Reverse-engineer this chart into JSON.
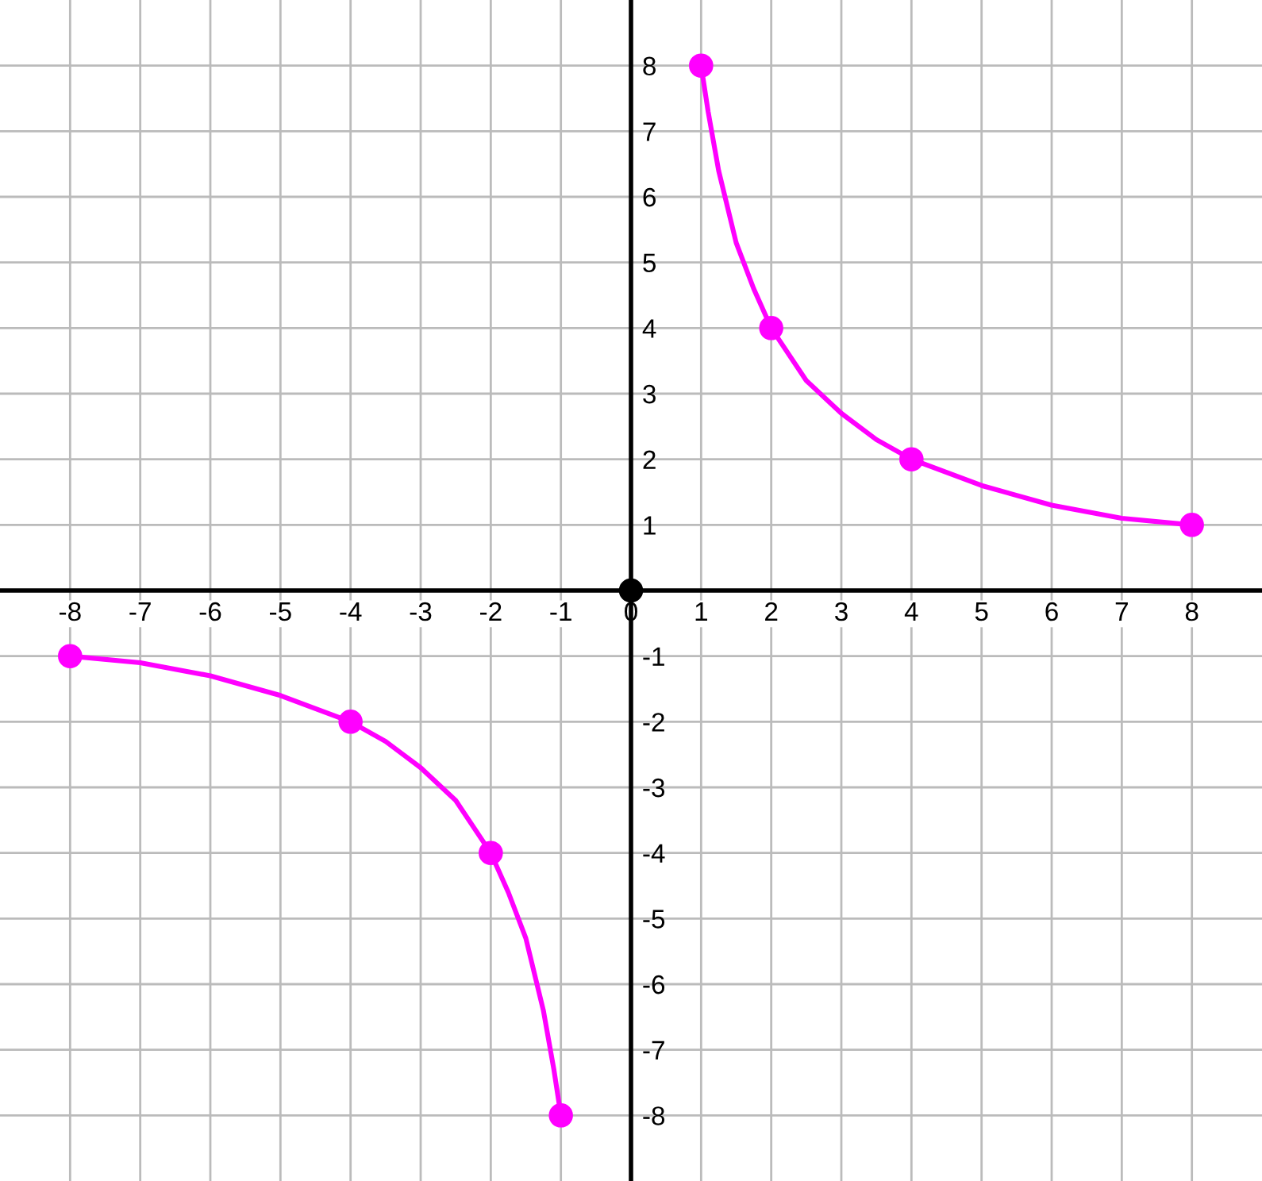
{
  "chart_data": {
    "type": "line",
    "series": [
      {
        "color": "#ff00ff",
        "x": [
          1,
          1.1,
          1.25,
          1.5,
          1.75,
          2,
          2.5,
          3,
          3.5,
          4,
          5,
          6,
          7,
          8
        ],
        "values": [
          8,
          7.3,
          6.4,
          5.3,
          4.6,
          4,
          3.2,
          2.7,
          2.3,
          2,
          1.6,
          1.3,
          1.1,
          1
        ]
      },
      {
        "color": "#ff00ff",
        "x": [
          -8,
          -7,
          -6,
          -5,
          -4,
          -3.5,
          -3,
          -2.5,
          -2,
          -1.75,
          -1.5,
          -1.25,
          -1.1,
          -1
        ],
        "values": [
          -1,
          -1.1,
          -1.3,
          -1.6,
          -2,
          -2.3,
          -2.7,
          -3.2,
          -4,
          -4.6,
          -5.3,
          -6.4,
          -7.3,
          -8
        ]
      },
      {
        "type": "scatter",
        "color": "#ff00ff",
        "marker": "circle",
        "x": [
          1,
          2,
          4,
          8,
          -1,
          -2,
          -4,
          -8
        ],
        "values": [
          8,
          4,
          2,
          1,
          -8,
          -4,
          -2,
          -1
        ]
      },
      {
        "type": "scatter",
        "color": "#000000",
        "marker": "circle",
        "x": [
          0
        ],
        "values": [
          0
        ]
      }
    ],
    "xlim": [
      -9,
      9
    ],
    "ylim": [
      -9,
      9
    ],
    "xticks": [
      -8,
      -7,
      -6,
      -5,
      -4,
      -3,
      -2,
      -1,
      0,
      1,
      2,
      3,
      4,
      5,
      6,
      7,
      8
    ],
    "yticks": [
      -8,
      -7,
      -6,
      -5,
      -4,
      -3,
      -2,
      -1,
      1,
      2,
      3,
      4,
      5,
      6,
      7,
      8
    ],
    "grid": true,
    "legend": false
  }
}
